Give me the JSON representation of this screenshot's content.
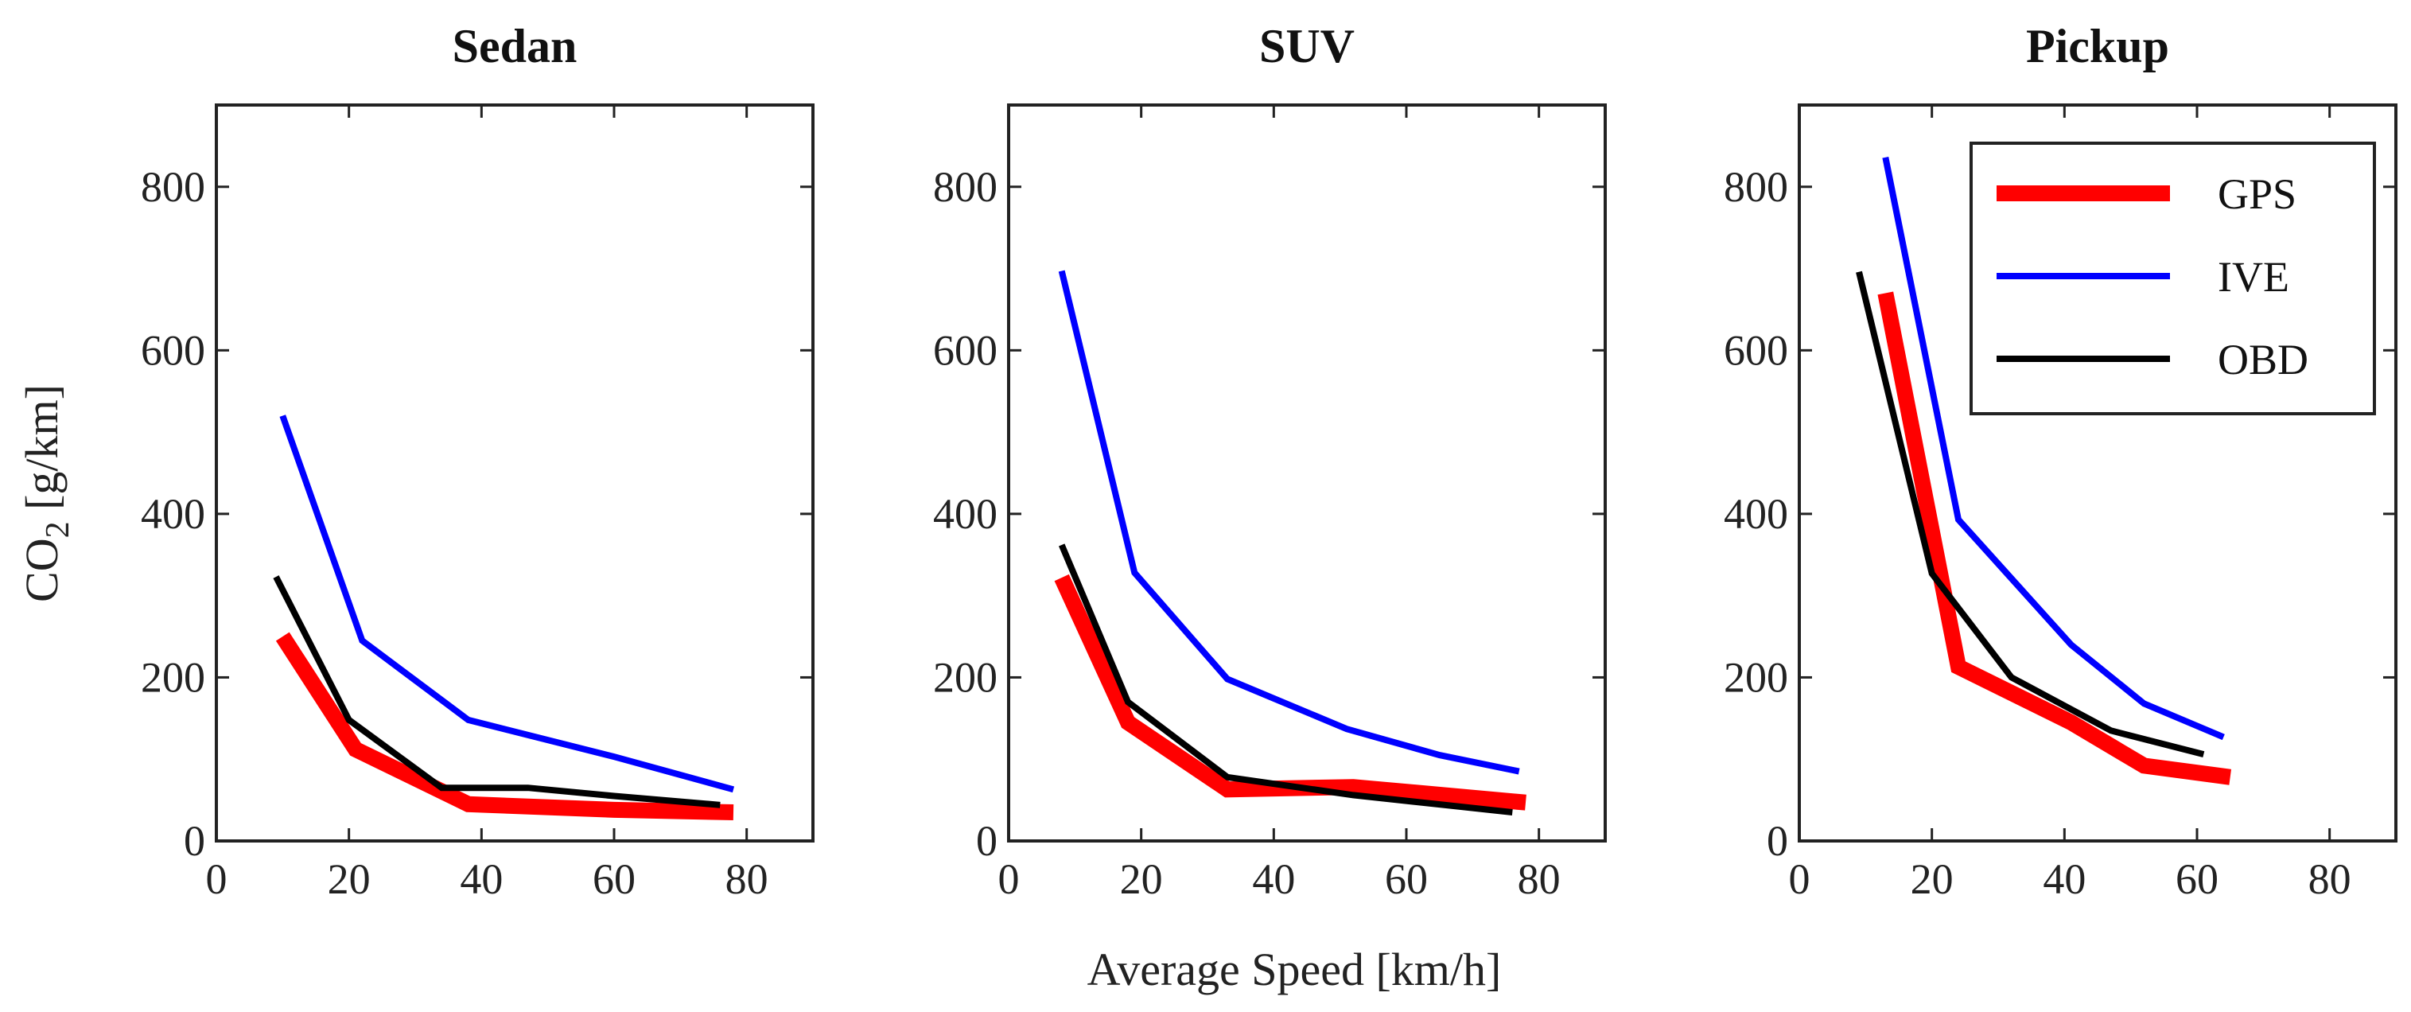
{
  "chart_data": [
    {
      "type": "line",
      "title": "Sedan",
      "xlim": [
        0,
        90
      ],
      "ylim": [
        0,
        900
      ],
      "xticks": [
        "0",
        "20",
        "40",
        "60",
        "80"
      ],
      "yticks": [
        "0",
        "200",
        "400",
        "600",
        "800"
      ],
      "series": [
        {
          "name": "GPS",
          "color": "#ff0000",
          "x": [
            10,
            21,
            38,
            60,
            78
          ],
          "y": [
            250,
            112,
            45,
            38,
            35
          ]
        },
        {
          "name": "IVE",
          "color": "#0000ff",
          "x": [
            10,
            22,
            38,
            60,
            78
          ],
          "y": [
            520,
            245,
            148,
            103,
            63
          ]
        },
        {
          "name": "OBD",
          "color": "#000000",
          "x": [
            9,
            20,
            34,
            47,
            60,
            76
          ],
          "y": [
            323,
            148,
            65,
            65,
            55,
            44
          ]
        }
      ],
      "legend": null
    },
    {
      "type": "line",
      "title": "SUV",
      "xlim": [
        0,
        90
      ],
      "ylim": [
        0,
        900
      ],
      "xticks": [
        "0",
        "20",
        "40",
        "60",
        "80"
      ],
      "yticks": [
        "0",
        "200",
        "400",
        "600",
        "800"
      ],
      "series": [
        {
          "name": "GPS",
          "color": "#ff0000",
          "x": [
            8,
            18,
            33,
            52,
            78
          ],
          "y": [
            322,
            145,
            63,
            66,
            47
          ]
        },
        {
          "name": "IVE",
          "color": "#0000ff",
          "x": [
            8,
            19,
            33,
            51,
            65,
            77
          ],
          "y": [
            697,
            328,
            198,
            137,
            105,
            85
          ]
        },
        {
          "name": "OBD",
          "color": "#000000",
          "x": [
            8,
            18,
            33,
            52,
            76
          ],
          "y": [
            362,
            170,
            78,
            56,
            35
          ]
        }
      ],
      "legend": null
    },
    {
      "type": "line",
      "title": "Pickup",
      "xlim": [
        0,
        90
      ],
      "ylim": [
        0,
        900
      ],
      "xticks": [
        "0",
        "20",
        "40",
        "60",
        "80"
      ],
      "yticks": [
        "0",
        "200",
        "400",
        "600",
        "800"
      ],
      "series": [
        {
          "name": "GPS",
          "color": "#ff0000",
          "x": [
            13,
            24,
            41,
            52,
            65
          ],
          "y": [
            670,
            213,
            145,
            92,
            78
          ]
        },
        {
          "name": "IVE",
          "color": "#0000ff",
          "x": [
            13,
            24,
            41,
            52,
            64
          ],
          "y": [
            836,
            393,
            240,
            168,
            127
          ]
        },
        {
          "name": "OBD",
          "color": "#000000",
          "x": [
            9,
            20,
            32,
            47,
            61
          ],
          "y": [
            696,
            327,
            200,
            135,
            106
          ]
        }
      ],
      "legend": {
        "placement": "top-right",
        "entries": [
          "GPS",
          "IVE",
          "OBD"
        ]
      }
    }
  ],
  "shared": {
    "ylabel": "CO2 [g/km]",
    "ylabel_main": "CO",
    "ylabel_sub": "2",
    "ylabel_unit": " [g/km]",
    "xlabel": "Average Speed [km/h]"
  }
}
